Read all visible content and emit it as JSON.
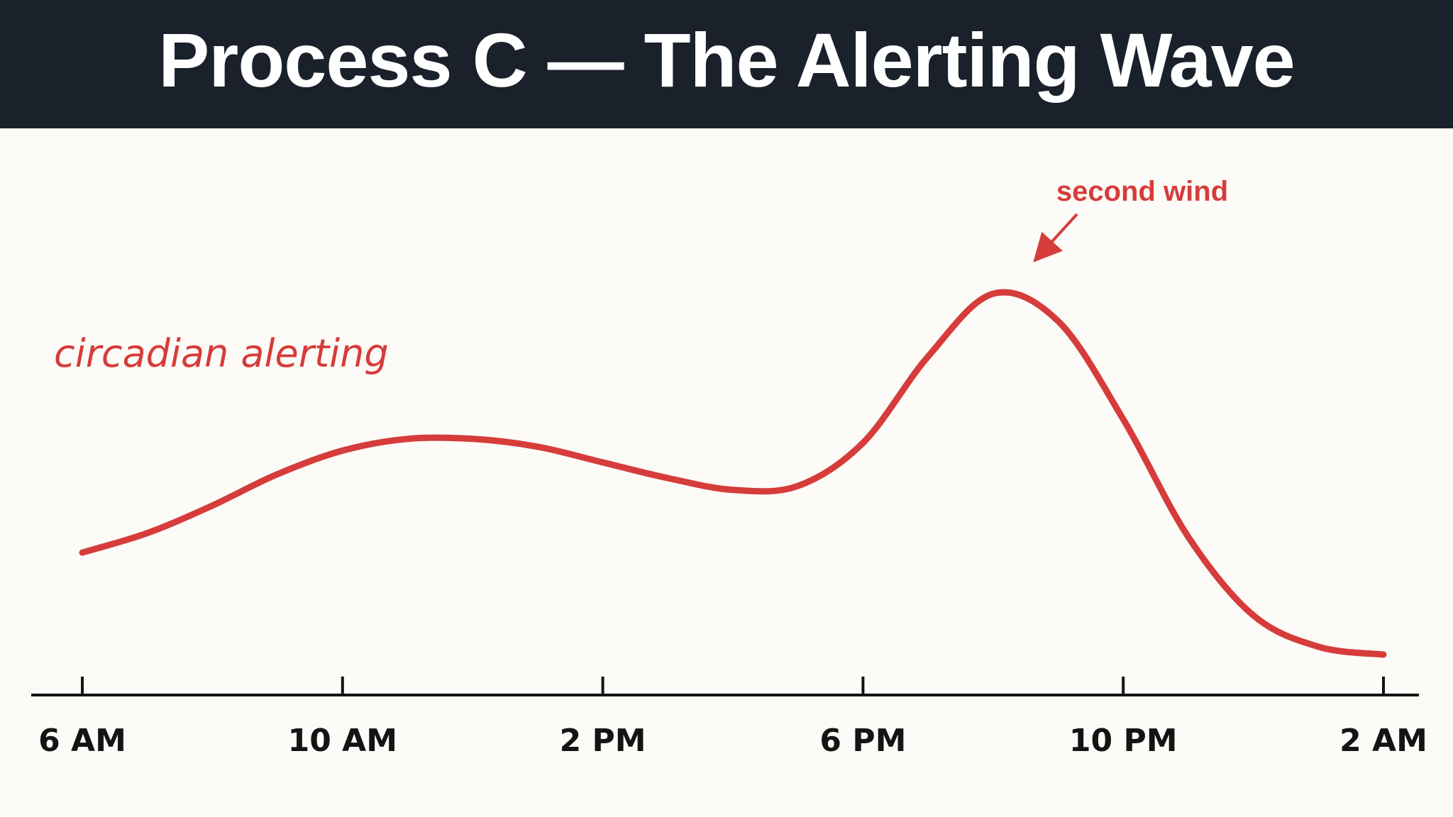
{
  "title": "Process C — The Alerting Wave",
  "colors": {
    "header_bg": "#1a212b",
    "background": "#fcfbf7",
    "curve": "#d63c3a",
    "axis": "#141414"
  },
  "chart_data": {
    "type": "line",
    "title": "Process C — The Alerting Wave",
    "xlabel": "",
    "ylabel": "",
    "x_ticks": [
      "6 AM",
      "10 AM",
      "2 PM",
      "6 PM",
      "10 PM",
      "2 AM"
    ],
    "x_range_hours": [
      6,
      26
    ],
    "y_axis_visible": false,
    "grid": false,
    "series": [
      {
        "name": "circadian alerting",
        "x": [
          6,
          7,
          8,
          9,
          10,
          11,
          12,
          13,
          14,
          15,
          16,
          17,
          18,
          19,
          20,
          21,
          22,
          23,
          24,
          25,
          26
        ],
        "y": [
          0.26,
          0.31,
          0.38,
          0.46,
          0.52,
          0.55,
          0.55,
          0.53,
          0.49,
          0.45,
          0.42,
          0.43,
          0.54,
          0.76,
          0.92,
          0.85,
          0.6,
          0.3,
          0.1,
          0.02,
          0.0
        ]
      }
    ],
    "annotations": [
      {
        "text": "second wind",
        "x": 20,
        "y": 0.92
      }
    ]
  }
}
